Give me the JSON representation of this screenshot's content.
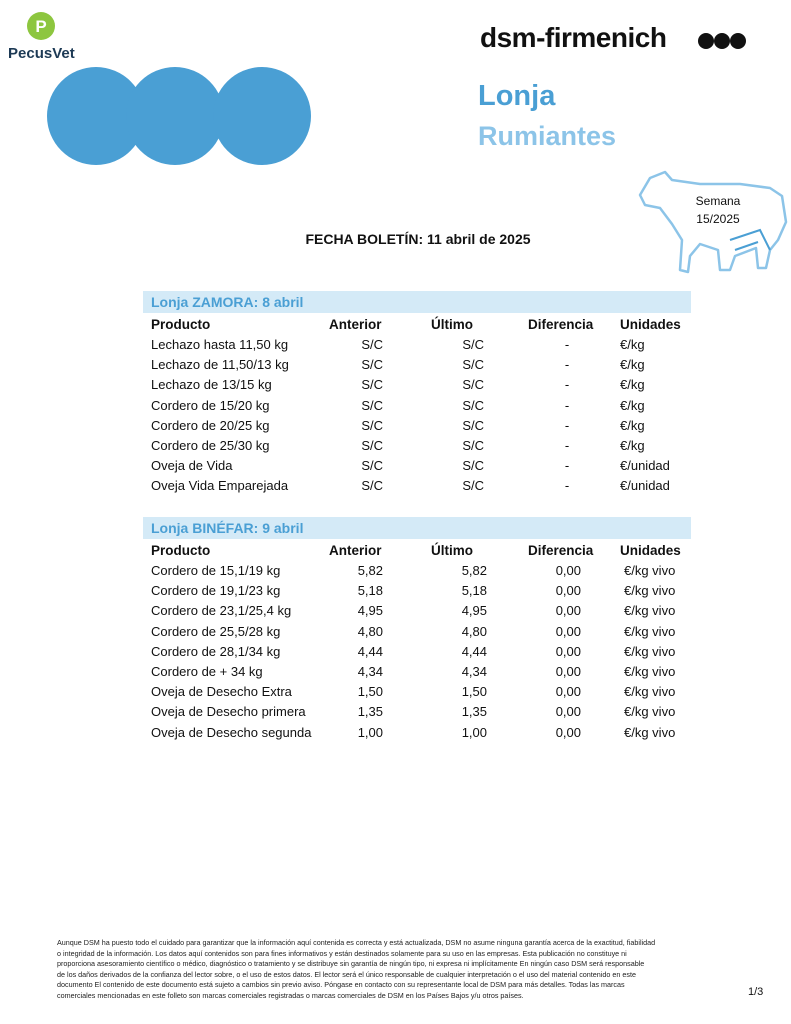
{
  "logo": "PecusVet",
  "brand": "dsm-firmenich",
  "title": "Lonja",
  "subtitle": "Rumiantes",
  "week": {
    "label": "Semana",
    "value": "15/2025"
  },
  "date_line": "FECHA BOLETÍN: 11 abril de 2025",
  "tables": [
    {
      "heading": "Lonja ZAMORA: 8 abril",
      "columns": [
        "Producto",
        "Anterior",
        "Último",
        "Diferencia",
        "Unidades"
      ],
      "rows": [
        [
          "Lechazo hasta 11,50 kg",
          "S/C",
          "S/C",
          "-",
          "€/kg"
        ],
        [
          "Lechazo de 11,50/13 kg",
          "S/C",
          "S/C",
          "-",
          "€/kg"
        ],
        [
          "Lechazo de 13/15 kg",
          "S/C",
          "S/C",
          "-",
          "€/kg"
        ],
        [
          "Cordero de 15/20 kg",
          "S/C",
          "S/C",
          "-",
          "€/kg"
        ],
        [
          "Cordero de 20/25 kg",
          "S/C",
          "S/C",
          "-",
          "€/kg"
        ],
        [
          "Cordero de 25/30 kg",
          "S/C",
          "S/C",
          "-",
          "€/kg"
        ],
        [
          "Oveja de Vida",
          "S/C",
          "S/C",
          "-",
          "€/unidad"
        ],
        [
          "Oveja Vida Emparejada",
          "S/C",
          "S/C",
          "-",
          "€/unidad"
        ]
      ]
    },
    {
      "heading": "Lonja BINÉFAR: 9 abril",
      "columns": [
        "Producto",
        "Anterior",
        "Último",
        "Diferencia",
        "Unidades"
      ],
      "rows": [
        [
          "Cordero de 15,1/19 kg",
          "5,82",
          "5,82",
          "0,00",
          "€/kg vivo"
        ],
        [
          "Cordero de 19,1/23 kg",
          "5,18",
          "5,18",
          "0,00",
          "€/kg vivo"
        ],
        [
          "Cordero de 23,1/25,4 kg",
          "4,95",
          "4,95",
          "0,00",
          "€/kg vivo"
        ],
        [
          "Cordero de 25,5/28 kg",
          "4,80",
          "4,80",
          "0,00",
          "€/kg vivo"
        ],
        [
          "Cordero de 28,1/34 kg",
          "4,44",
          "4,44",
          "0,00",
          "€/kg vivo"
        ],
        [
          "Cordero de + 34 kg",
          "4,34",
          "4,34",
          "0,00",
          "€/kg vivo"
        ],
        [
          "Oveja de Desecho Extra",
          "1,50",
          "1,50",
          "0,00",
          "€/kg vivo"
        ],
        [
          "Oveja de Desecho primera",
          "1,35",
          "1,35",
          "0,00",
          "€/kg vivo"
        ],
        [
          "Oveja de Desecho segunda",
          "1,00",
          "1,00",
          "0,00",
          "€/kg vivo"
        ]
      ]
    }
  ],
  "footer": {
    "lines": [
      "Aunque DSM ha puesto todo el cuidado para garantizar que la información aquí contenida es correcta y está actualizada, DSM no asume ninguna garantía acerca de la exactitud, fiabilidad",
      "o integridad de la información. Los datos aquí contenidos son para fines informativos y están destinados solamente para su uso en las empresas. Esta publicación no constituye ni",
      "proporciona asesoramiento científico o médico, diagnóstico o tratamiento y se distribuye sin garantía de ningún tipo, ni expresa ni implícitamente En ningún caso DSM será responsable",
      "de los daños derivados de la confianza del lector sobre, o el uso de estos datos. El lector será el único responsable de cualquier interpretación o el uso del material contenido en este",
      "documento El contenido de este documento está sujeto a cambios sin previo aviso. Póngase en contacto con su representante local de DSM para más detalles. Todas las marcas",
      "comerciales mencionadas en este folleto son marcas comerciales registradas o marcas comerciales de DSM en los Países Bajos y/u otros países."
    ],
    "page": "1/3"
  }
}
